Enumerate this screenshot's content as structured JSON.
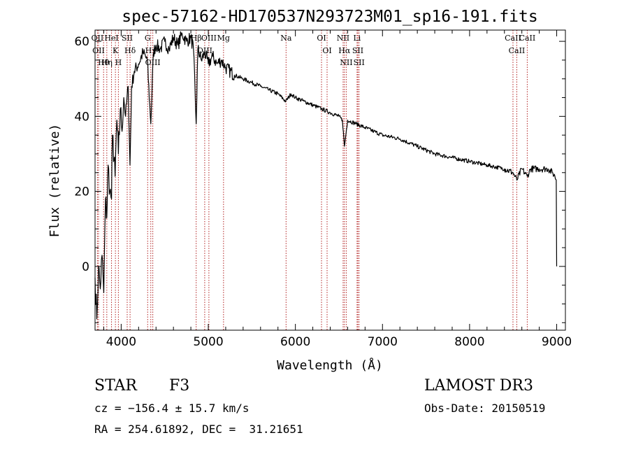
{
  "chart_data": {
    "type": "line",
    "title": "spec-57162-HD170537N293723M01_sp16-191.fits",
    "xlabel": "Wavelength (Å)",
    "ylabel": "Flux (relative)",
    "xlim": [
      3700,
      9100
    ],
    "ylim": [
      -17,
      63
    ],
    "x_ticks": [
      4000,
      5000,
      6000,
      7000,
      8000,
      9000
    ],
    "y_ticks": [
      0,
      20,
      40,
      60
    ],
    "series": [
      {
        "name": "flux",
        "x": [
          3700,
          3720,
          3740,
          3760,
          3780,
          3800,
          3820,
          3835,
          3850,
          3870,
          3889,
          3900,
          3930,
          3950,
          3968,
          3990,
          4010,
          4030,
          4050,
          4080,
          4101,
          4120,
          4150,
          4200,
          4250,
          4300,
          4340,
          4370,
          4400,
          4450,
          4500,
          4550,
          4600,
          4650,
          4700,
          4750,
          4800,
          4830,
          4861,
          4880,
          4920,
          4960,
          5000,
          5050,
          5100,
          5150,
          5200,
          5300,
          5400,
          5500,
          5600,
          5700,
          5800,
          5890,
          5950,
          6000,
          6100,
          6200,
          6300,
          6400,
          6500,
          6540,
          6563,
          6600,
          6700,
          6800,
          6900,
          7000,
          7200,
          7400,
          7600,
          7800,
          8000,
          8200,
          8400,
          8498,
          8542,
          8600,
          8662,
          8700,
          8800,
          8900,
          8950,
          8980,
          8995,
          9000
        ],
        "y": [
          -3,
          -14,
          0,
          -6,
          3,
          -7,
          18,
          13,
          27,
          20,
          18,
          35,
          24,
          39,
          30,
          42,
          36,
          45,
          40,
          48,
          27,
          48,
          52,
          54,
          57,
          55,
          38,
          57,
          59,
          58,
          60,
          58,
          61,
          59,
          62,
          60,
          61,
          58,
          38,
          58,
          55,
          57,
          54,
          56,
          54,
          55,
          53,
          51,
          50,
          49,
          48,
          47,
          46,
          44,
          46,
          45,
          44,
          43,
          42,
          41,
          40,
          39,
          32,
          39,
          38,
          37,
          36,
          35,
          34,
          32,
          30,
          29,
          28,
          27,
          26,
          25,
          23,
          26,
          24,
          26,
          26,
          26,
          25,
          24,
          23,
          0
        ]
      }
    ],
    "line_markers": [
      {
        "label": "Hθ",
        "x": 3798
      },
      {
        "label": "OII",
        "x": 3727
      },
      {
        "label": "OII",
        "x": 3740
      },
      {
        "label": "Hη",
        "x": 3835
      },
      {
        "label": "HeI",
        "x": 3889
      },
      {
        "label": "K",
        "x": 3934
      },
      {
        "label": "H",
        "x": 3968
      },
      {
        "label": "SII",
        "x": 4069
      },
      {
        "label": "Hδ",
        "x": 4102
      },
      {
        "label": "OIII",
        "x": 4363
      },
      {
        "label": "Hγ",
        "x": 4340
      },
      {
        "label": "G",
        "x": 4304
      },
      {
        "label": "Hβ",
        "x": 4861
      },
      {
        "label": "OIII",
        "x": 4959
      },
      {
        "label": "OIII",
        "x": 5007
      },
      {
        "label": "Mg",
        "x": 5175
      },
      {
        "label": "Na",
        "x": 5893
      },
      {
        "label": "OI",
        "x": 6300
      },
      {
        "label": "OI",
        "x": 6364
      },
      {
        "label": "Hα",
        "x": 6563
      },
      {
        "label": "NII",
        "x": 6548
      },
      {
        "label": "NII",
        "x": 6584
      },
      {
        "label": "SII",
        "x": 6717
      },
      {
        "label": "Li",
        "x": 6708
      },
      {
        "label": "SII",
        "x": 6731
      },
      {
        "label": "CaII",
        "x": 8542
      },
      {
        "label": "CaII",
        "x": 8498
      },
      {
        "label": "CaII",
        "x": 8662
      }
    ]
  },
  "info": {
    "object_class": "STAR",
    "subclass": "F3",
    "survey": "LAMOST DR3",
    "cz": "cz = −156.4 ± 15.7 km/s",
    "obs_date": "Obs-Date: 20150519",
    "coords": "RA = 254.61892, DEC =  31.21651"
  },
  "colors": {
    "spectrum": "#000000",
    "marker": "#b22222",
    "axis": "#000000"
  }
}
